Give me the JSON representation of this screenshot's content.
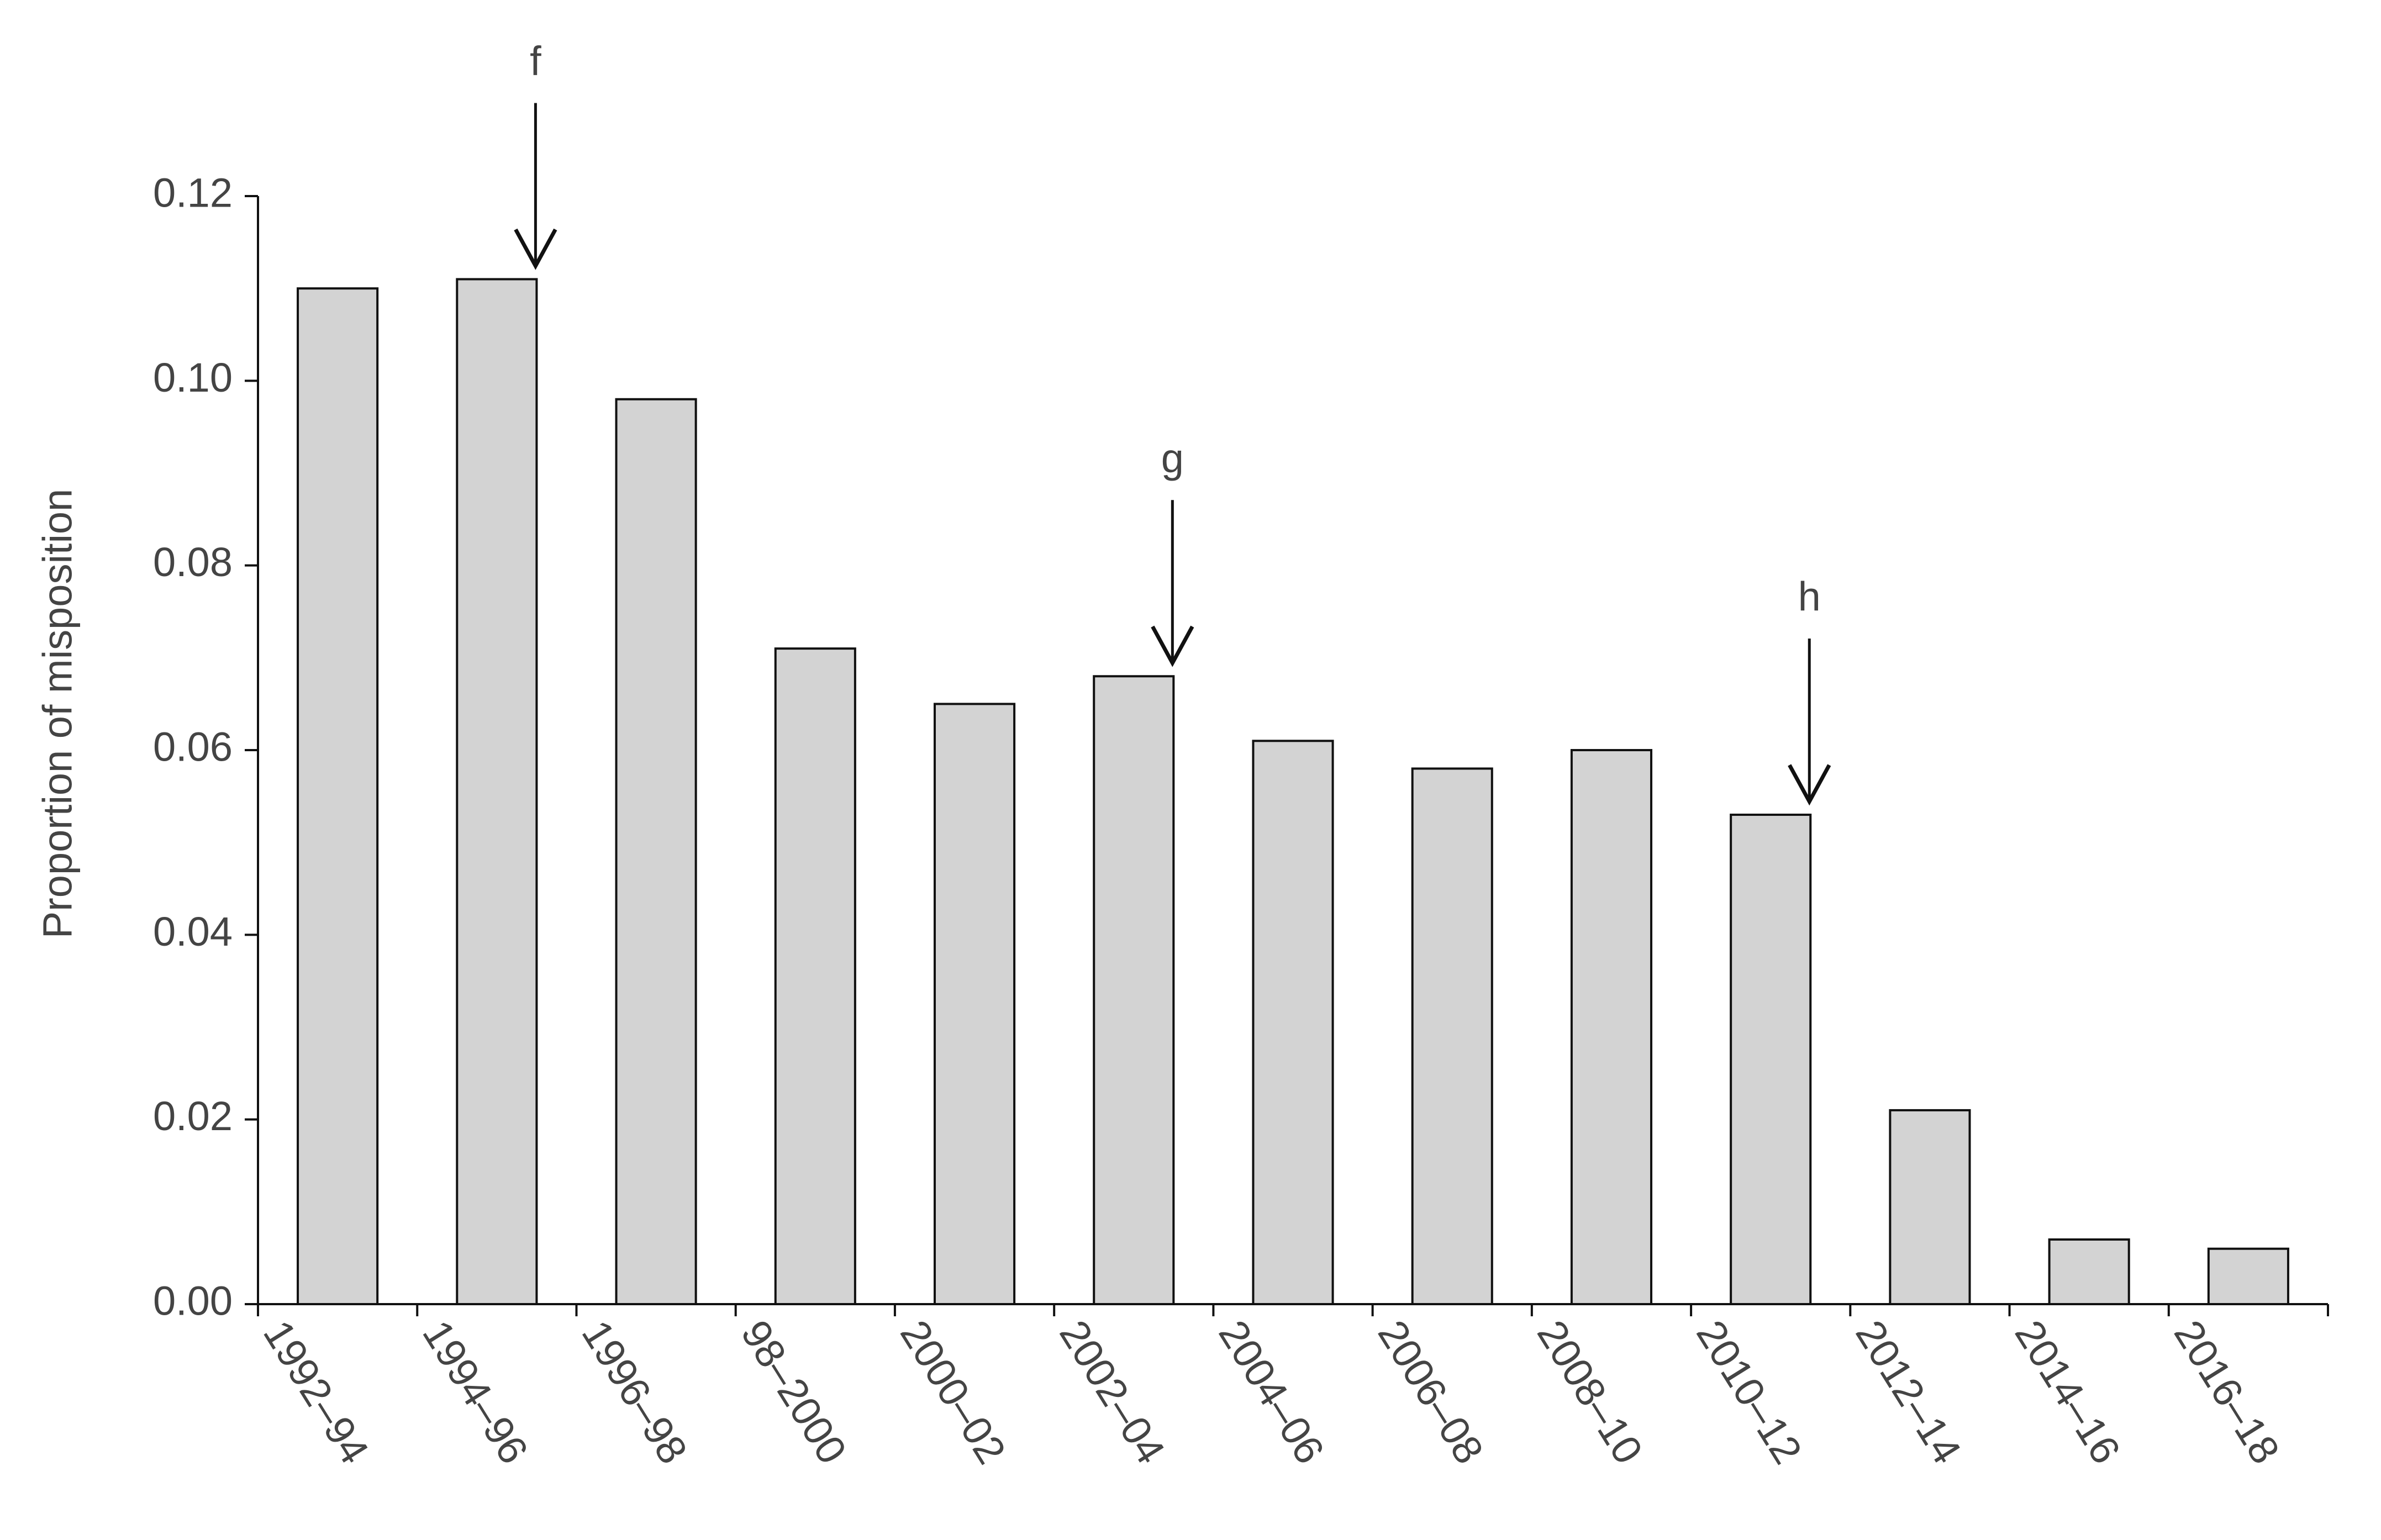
{
  "chart_data": {
    "type": "bar",
    "ylabel": "Proportion of misposition",
    "categories": [
      "1992–94",
      "1994–96",
      "1996–98",
      "98–2000",
      "2000–02",
      "2002–04",
      "2004–06",
      "2006–08",
      "2008–10",
      "2010–12",
      "2012–14",
      "2014–16",
      "2016–18"
    ],
    "values": [
      0.11,
      0.111,
      0.098,
      0.071,
      0.065,
      0.068,
      0.061,
      0.058,
      0.06,
      0.053,
      0.021,
      0.007,
      0.006
    ],
    "color": "#d3d3d3",
    "ylim": [
      0,
      0.12
    ],
    "yticks": [
      {
        "value": 0,
        "label": "0.00"
      },
      {
        "value": 0.02,
        "label": "0.02"
      },
      {
        "value": 0.04,
        "label": "0.04"
      },
      {
        "value": 0.06,
        "label": "0.06"
      },
      {
        "value": 0.08,
        "label": "0.08"
      },
      {
        "value": 0.1,
        "label": "0.10"
      },
      {
        "value": 0.12,
        "label": "0.12"
      }
    ],
    "grid": false,
    "annotations": [
      {
        "text": "f",
        "category": "1994–96"
      },
      {
        "text": "g",
        "category": "2002–04"
      },
      {
        "text": "h",
        "category": "2010–12"
      }
    ]
  }
}
